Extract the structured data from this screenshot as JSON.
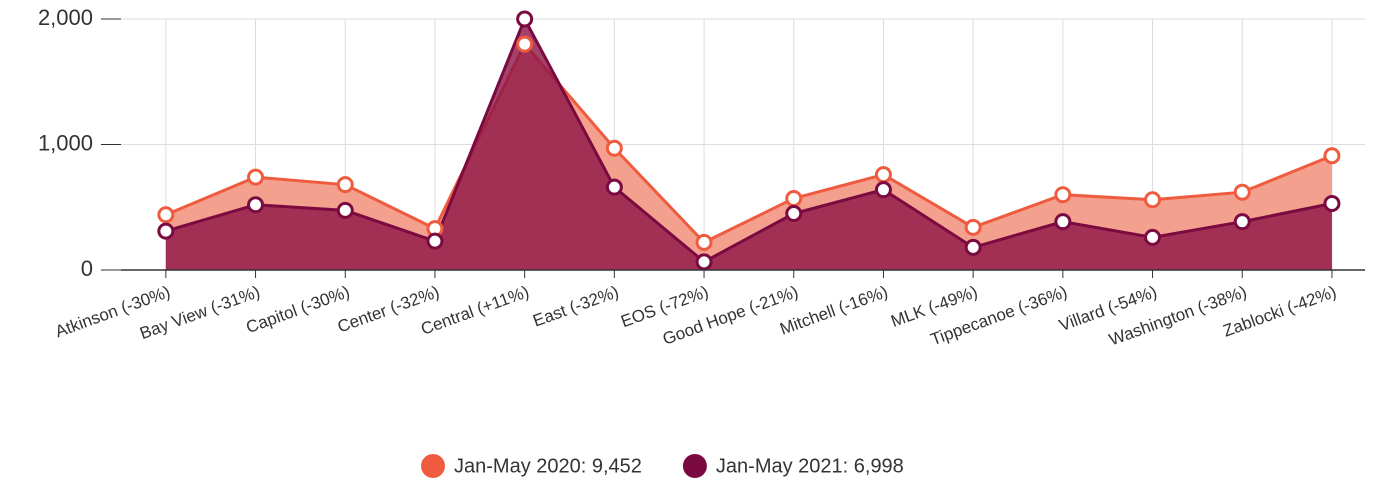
{
  "chart_data": {
    "type": "area",
    "categories": [
      "Atkinson (-30%)",
      "Bay View (-31%)",
      "Capitol (-30%)",
      "Center (-32%)",
      "Central (+11%)",
      "East (-32%)",
      "EOS (-72%)",
      "Good Hope (-21%)",
      "Mitchell (-16%)",
      "MLK (-49%)",
      "Tippecanoe (-36%)",
      "Villard (-54%)",
      "Washington (-38%)",
      "Zablocki (-42%)"
    ],
    "series": [
      {
        "name": "Jan-May 2020: 9,452",
        "color": "#ef5b3f",
        "values": [
          440,
          740,
          680,
          330,
          1800,
          970,
          220,
          570,
          760,
          340,
          600,
          560,
          620,
          910
        ]
      },
      {
        "name": "Jan-May 2021: 6,998",
        "color": "#7a0a40",
        "values": [
          310,
          520,
          475,
          230,
          2000,
          660,
          65,
          450,
          640,
          180,
          385,
          260,
          385,
          530
        ]
      }
    ],
    "ylim": [
      0,
      2000
    ],
    "yticks": [
      0,
      {
        "value": 1000,
        "label": "1,000"
      },
      {
        "value": 2000,
        "label": "2,000"
      }
    ],
    "grid": true,
    "legend": "bottom"
  }
}
